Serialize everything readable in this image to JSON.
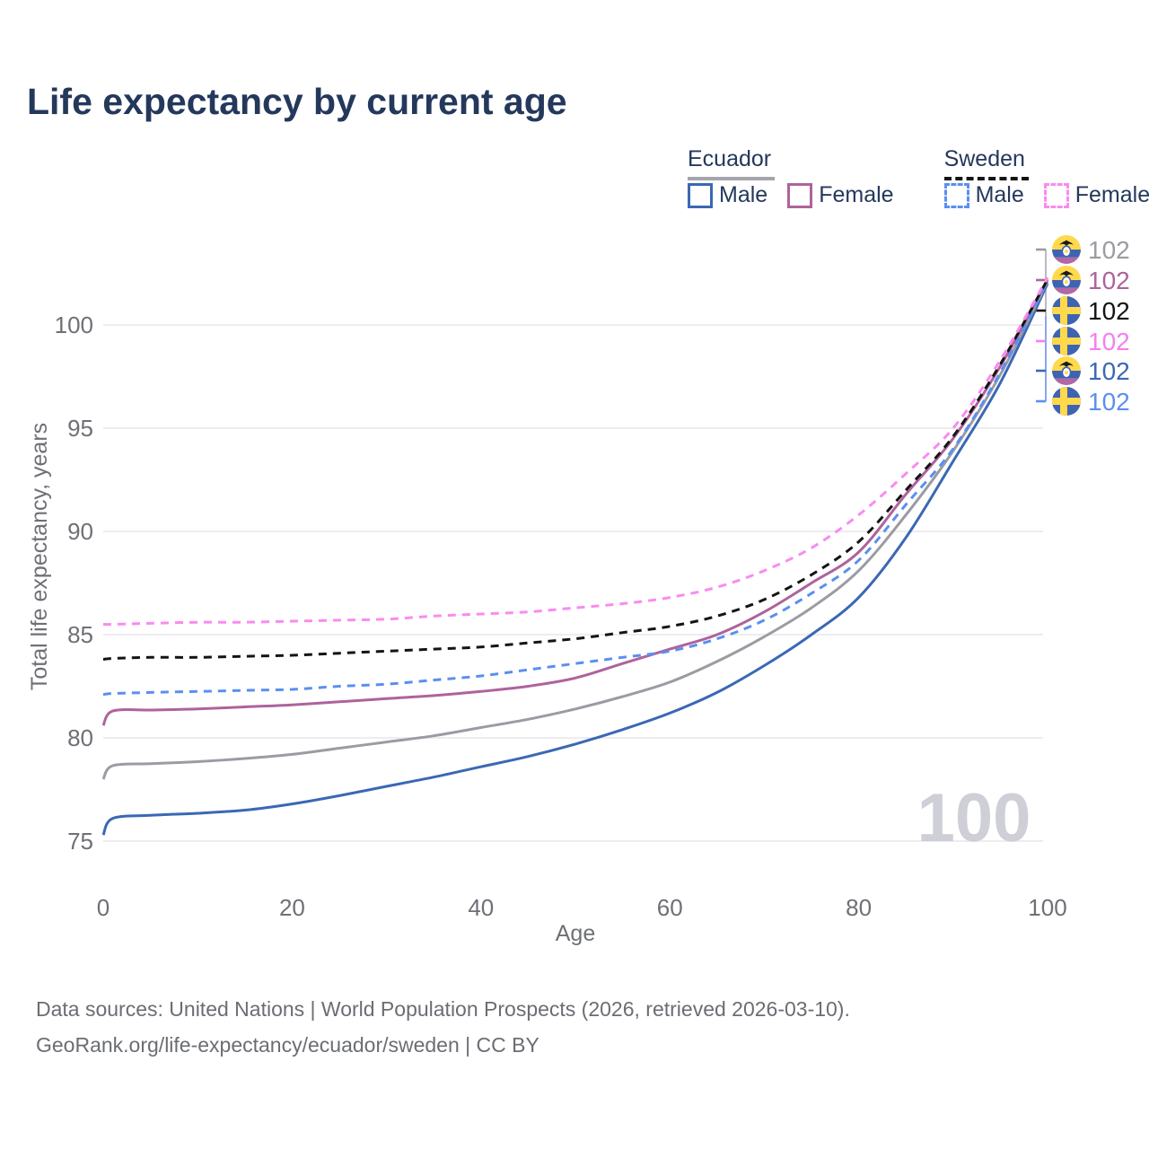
{
  "title": "Life expectancy by current age",
  "watermark": "100",
  "legend": {
    "groups": [
      {
        "name": "Ecuador",
        "underline_style": "solid",
        "underline_color": "#a5a5ad",
        "items": [
          {
            "label": "Male",
            "color": "#3a68b4",
            "dashed": false
          },
          {
            "label": "Female",
            "color": "#ae639b",
            "dashed": false
          }
        ]
      },
      {
        "name": "Sweden",
        "underline_style": "dashed",
        "underline_color": "#141414",
        "items": [
          {
            "label": "Male",
            "color": "#5b8ff0",
            "dashed": true
          },
          {
            "label": "Female",
            "color": "#f98bf0",
            "dashed": true
          }
        ]
      }
    ]
  },
  "footer": {
    "line1": "Data sources: United Nations | World Population Prospects (2026, retrieved 2026-03-10).",
    "line2": "GeoRank.org/life-expectancy/ecuador/sweden | CC BY"
  },
  "chart_data": {
    "type": "line",
    "title": "Life expectancy by current age",
    "xlabel": "Age",
    "ylabel": "Total life expectancy, years",
    "xlim": [
      0,
      100
    ],
    "ylim": [
      73.5,
      103.5
    ],
    "x_ticks": [
      0,
      20,
      40,
      60,
      80,
      100
    ],
    "y_ticks": [
      75,
      80,
      85,
      90,
      95,
      100
    ],
    "grid": "horizontal",
    "legend_position": "top-right",
    "x": [
      0,
      1,
      5,
      10,
      15,
      20,
      25,
      30,
      35,
      40,
      45,
      50,
      55,
      60,
      65,
      70,
      75,
      80,
      85,
      90,
      95,
      100
    ],
    "series": [
      {
        "name": "Ecuador Male",
        "country": "Ecuador",
        "sex": "Male",
        "color": "#3a68b4",
        "dashed": false,
        "values": [
          75.3,
          76.1,
          76.25,
          76.35,
          76.5,
          76.8,
          77.2,
          77.65,
          78.1,
          78.6,
          79.1,
          79.7,
          80.4,
          81.2,
          82.2,
          83.5,
          85.0,
          86.8,
          89.7,
          93.4,
          97.2,
          102.0
        ]
      },
      {
        "name": "Ecuador Both sexes",
        "country": "Ecuador",
        "sex": "Both",
        "color": "#9b9ba3",
        "dashed": false,
        "values": [
          78.0,
          78.65,
          78.75,
          78.85,
          79.0,
          79.2,
          79.5,
          79.8,
          80.1,
          80.5,
          80.9,
          81.4,
          82.0,
          82.7,
          83.7,
          84.9,
          86.3,
          88.1,
          90.8,
          93.9,
          97.6,
          102.1
        ]
      },
      {
        "name": "Ecuador Female",
        "country": "Ecuador",
        "sex": "Female",
        "color": "#ae639b",
        "dashed": false,
        "values": [
          80.6,
          81.3,
          81.35,
          81.4,
          81.5,
          81.6,
          81.75,
          81.9,
          82.05,
          82.25,
          82.5,
          82.9,
          83.6,
          84.3,
          85.0,
          86.1,
          87.5,
          89.0,
          91.8,
          94.5,
          98.0,
          102.2
        ]
      },
      {
        "name": "Sweden Male",
        "country": "Sweden",
        "sex": "Male",
        "color": "#5b8ff0",
        "dashed": true,
        "values": [
          82.1,
          82.15,
          82.2,
          82.25,
          82.3,
          82.35,
          82.5,
          82.6,
          82.8,
          83.0,
          83.3,
          83.6,
          83.9,
          84.2,
          84.8,
          85.7,
          87.0,
          88.6,
          91.3,
          94.0,
          97.7,
          102.1
        ]
      },
      {
        "name": "Sweden Both sexes",
        "country": "Sweden",
        "sex": "Both",
        "color": "#141414",
        "dashed": true,
        "values": [
          83.8,
          83.85,
          83.9,
          83.9,
          83.95,
          84.0,
          84.1,
          84.2,
          84.3,
          84.4,
          84.6,
          84.8,
          85.1,
          85.4,
          85.9,
          86.7,
          87.9,
          89.5,
          92.0,
          94.6,
          98.1,
          102.2
        ]
      },
      {
        "name": "Sweden Female",
        "country": "Sweden",
        "sex": "Female",
        "color": "#f98bf0",
        "dashed": true,
        "values": [
          85.5,
          85.5,
          85.55,
          85.6,
          85.6,
          85.65,
          85.7,
          85.75,
          85.9,
          86.0,
          86.1,
          86.3,
          86.5,
          86.8,
          87.3,
          88.1,
          89.2,
          90.8,
          92.8,
          95.0,
          98.3,
          102.3
        ]
      }
    ],
    "end_labels": [
      {
        "value": "102",
        "color": "#9b9ba3",
        "flag": "ecuador",
        "series": "Ecuador Both sexes"
      },
      {
        "value": "102",
        "color": "#ae639b",
        "flag": "ecuador",
        "series": "Ecuador Female"
      },
      {
        "value": "102",
        "color": "#141414",
        "flag": "sweden",
        "series": "Sweden Both sexes"
      },
      {
        "value": "102",
        "color": "#f47ff0",
        "flag": "sweden",
        "series": "Sweden Female"
      },
      {
        "value": "102",
        "color": "#3a68b4",
        "flag": "ecuador",
        "series": "Ecuador Male"
      },
      {
        "value": "102",
        "color": "#5b8ff0",
        "flag": "sweden",
        "series": "Sweden Male"
      }
    ],
    "current_age_indicator": "100"
  }
}
